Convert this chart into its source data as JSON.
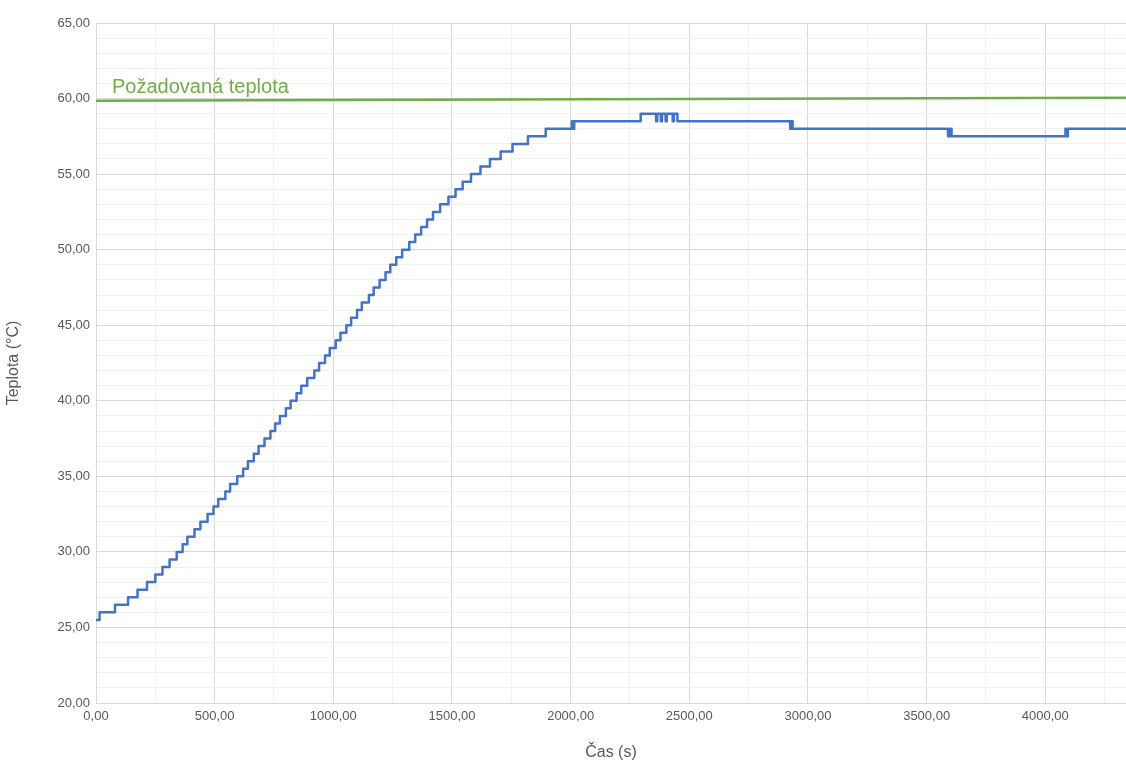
{
  "chart_data": {
    "type": "step",
    "xlabel": "Čas (s)",
    "ylabel": "Teplota (°C)",
    "xlim": [
      0,
      4340
    ],
    "ylim": [
      20,
      65
    ],
    "xticks": [
      {
        "value": 0,
        "label": "0,00"
      },
      {
        "value": 250,
        "label": null
      },
      {
        "value": 500,
        "label": "500,00"
      },
      {
        "value": 750,
        "label": null
      },
      {
        "value": 1000,
        "label": "1000,00"
      },
      {
        "value": 1250,
        "label": null
      },
      {
        "value": 1500,
        "label": "1500,00"
      },
      {
        "value": 1750,
        "label": null
      },
      {
        "value": 2000,
        "label": "2000,00"
      },
      {
        "value": 2250,
        "label": null
      },
      {
        "value": 2500,
        "label": "2500,00"
      },
      {
        "value": 2750,
        "label": null
      },
      {
        "value": 3000,
        "label": "3000,00"
      },
      {
        "value": 3250,
        "label": null
      },
      {
        "value": 3500,
        "label": "3500,00"
      },
      {
        "value": 3750,
        "label": null
      },
      {
        "value": 4000,
        "label": "4000,00"
      },
      {
        "value": 4250,
        "label": null
      }
    ],
    "yticks": [
      {
        "value": 20,
        "label": "20,00"
      },
      {
        "value": 21,
        "label": null
      },
      {
        "value": 22,
        "label": null
      },
      {
        "value": 23,
        "label": null
      },
      {
        "value": 24,
        "label": null
      },
      {
        "value": 25,
        "label": "25,00"
      },
      {
        "value": 26,
        "label": null
      },
      {
        "value": 27,
        "label": null
      },
      {
        "value": 28,
        "label": null
      },
      {
        "value": 29,
        "label": null
      },
      {
        "value": 30,
        "label": "30,00"
      },
      {
        "value": 31,
        "label": null
      },
      {
        "value": 32,
        "label": null
      },
      {
        "value": 33,
        "label": null
      },
      {
        "value": 34,
        "label": null
      },
      {
        "value": 35,
        "label": "35,00"
      },
      {
        "value": 36,
        "label": null
      },
      {
        "value": 37,
        "label": null
      },
      {
        "value": 38,
        "label": null
      },
      {
        "value": 39,
        "label": null
      },
      {
        "value": 40,
        "label": "40,00"
      },
      {
        "value": 41,
        "label": null
      },
      {
        "value": 42,
        "label": null
      },
      {
        "value": 43,
        "label": null
      },
      {
        "value": 44,
        "label": null
      },
      {
        "value": 45,
        "label": "45,00"
      },
      {
        "value": 46,
        "label": null
      },
      {
        "value": 47,
        "label": null
      },
      {
        "value": 48,
        "label": null
      },
      {
        "value": 49,
        "label": null
      },
      {
        "value": 50,
        "label": "50,00"
      },
      {
        "value": 51,
        "label": null
      },
      {
        "value": 52,
        "label": null
      },
      {
        "value": 53,
        "label": null
      },
      {
        "value": 54,
        "label": null
      },
      {
        "value": 55,
        "label": "55,00"
      },
      {
        "value": 56,
        "label": null
      },
      {
        "value": 57,
        "label": null
      },
      {
        "value": 58,
        "label": null
      },
      {
        "value": 59,
        "label": null
      },
      {
        "value": 60,
        "label": "60,00"
      },
      {
        "value": 61,
        "label": null
      },
      {
        "value": 62,
        "label": null
      },
      {
        "value": 63,
        "label": null
      },
      {
        "value": 64,
        "label": null
      },
      {
        "value": 65,
        "label": "65,00"
      }
    ],
    "grid": true,
    "legend": false,
    "marker": "none",
    "line_style": "solid",
    "series": [
      {
        "color": "#4472c4",
        "x": [
          0,
          15,
          80,
          135,
          175,
          215,
          250,
          280,
          310,
          340,
          365,
          385,
          415,
          440,
          470,
          495,
          515,
          545,
          565,
          595,
          620,
          640,
          665,
          685,
          710,
          735,
          755,
          775,
          800,
          820,
          845,
          865,
          890,
          920,
          940,
          965,
          985,
          1010,
          1030,
          1055,
          1075,
          1100,
          1120,
          1150,
          1170,
          1195,
          1220,
          1240,
          1265,
          1290,
          1320,
          1345,
          1370,
          1395,
          1420,
          1450,
          1485,
          1515,
          1545,
          1580,
          1620,
          1660,
          1705,
          1755,
          1820,
          1895,
          2005,
          2010,
          2015,
          2295,
          2360,
          2365,
          2380,
          2385,
          2400,
          2405,
          2430,
          2435,
          2450,
          2925,
          2930,
          2935,
          3590,
          3600,
          3605,
          4085,
          4090,
          4095,
          4340
        ],
        "values": [
          25.5,
          26,
          26.5,
          27,
          27.5,
          28,
          28.5,
          29,
          29.5,
          30,
          30.5,
          31,
          31.5,
          32,
          32.5,
          33,
          33.5,
          34,
          34.5,
          35,
          35.5,
          36,
          36.5,
          37,
          37.5,
          38,
          38.5,
          39,
          39.5,
          40,
          40.5,
          41,
          41.5,
          42,
          42.5,
          43,
          43.5,
          44,
          44.5,
          45,
          45.5,
          46,
          46.5,
          47,
          47.5,
          48,
          48.5,
          49,
          49.5,
          50,
          50.5,
          51,
          51.5,
          52,
          52.5,
          53,
          53.5,
          54,
          54.5,
          55,
          55.5,
          56,
          56.5,
          57,
          57.5,
          58,
          58.5,
          58,
          58.5,
          59,
          58.5,
          59,
          58.5,
          59,
          58.5,
          59,
          58.5,
          59,
          58.5,
          58,
          58.5,
          58,
          57.5,
          58,
          57.5,
          58,
          57.5,
          58,
          58
        ]
      },
      {
        "type": "line",
        "name": "Požadovaná teplota",
        "color": "#70ad47",
        "x": [
          0,
          4340
        ],
        "values": [
          59.85,
          60.05
        ]
      }
    ]
  }
}
